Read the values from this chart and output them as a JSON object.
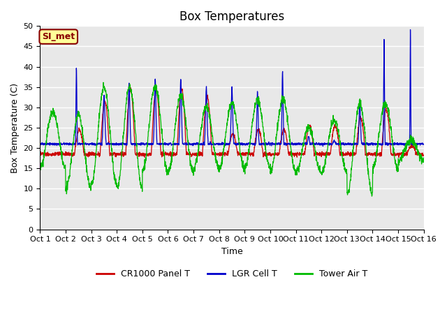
{
  "title": "Box Temperatures",
  "xlabel": "Time",
  "ylabel": "Box Temperature (C)",
  "ylim": [
    0,
    50
  ],
  "xlim": [
    0,
    15
  ],
  "x_tick_labels": [
    "Oct 1",
    "Oct 2",
    "Oct 3",
    "Oct 4",
    "Oct 5",
    "Oct 6",
    "Oct 7",
    "Oct 8",
    "Oct 9",
    "Oct 10",
    "Oct 11",
    "Oct 12",
    "Oct 13",
    "Oct 14",
    "Oct 15",
    "Oct 16"
  ],
  "fig_bg_color": "#ffffff",
  "plot_bg_color": "#e8e8e8",
  "line_colors": {
    "red": "#cc0000",
    "blue": "#0000cc",
    "green": "#00bb00"
  },
  "legend_labels": [
    "CR1000 Panel T",
    "LGR Cell T",
    "Tower Air T"
  ],
  "si_met_label": "SI_met",
  "si_met_bg": "#ffff99",
  "si_met_border": "#880000",
  "title_fontsize": 12,
  "axis_fontsize": 9,
  "tick_fontsize": 8,
  "legend_fontsize": 9
}
